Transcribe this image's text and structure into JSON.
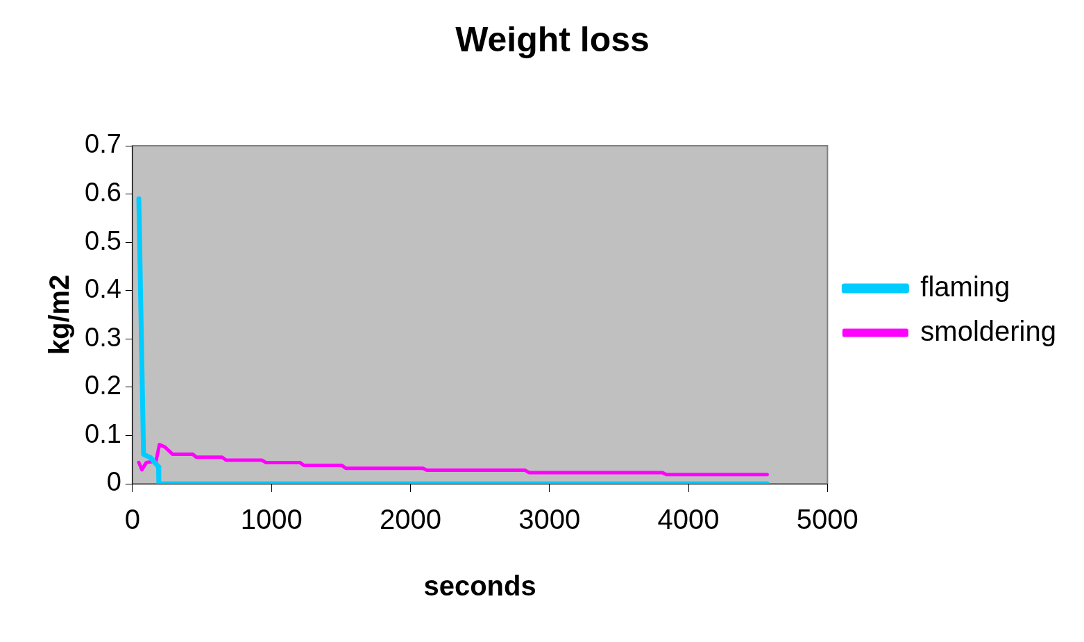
{
  "chart_data": {
    "type": "line",
    "title": "Weight loss",
    "xlabel": "seconds",
    "ylabel": "kg/m2",
    "xlim": [
      0,
      5000
    ],
    "xticks": [
      0,
      1000,
      2000,
      3000,
      4000,
      5000
    ],
    "ylim": [
      0,
      0.7
    ],
    "yticks": [
      0,
      0.1,
      0.2,
      0.3,
      0.4,
      0.5,
      0.6,
      0.7
    ],
    "grid": false,
    "legend": "right",
    "marker": "none",
    "line_style": "solid",
    "series": [
      {
        "name": "flaming",
        "color": "#00ccff",
        "x": [
          46,
          80,
          130,
          188,
          190,
          4566
        ],
        "values": [
          0.59,
          0.061,
          0.054,
          0.035,
          0,
          0
        ]
      },
      {
        "name": "smoldering",
        "color": "#ff00ff",
        "x": [
          46,
          68,
          100,
          170,
          194,
          234,
          290,
          434,
          460,
          645,
          674,
          930,
          960,
          1205,
          1233,
          1507,
          1535,
          2090,
          2118,
          2825,
          2853,
          3813,
          3841,
          4566
        ],
        "values": [
          0.044,
          0.029,
          0.044,
          0.047,
          0.081,
          0.076,
          0.061,
          0.061,
          0.055,
          0.055,
          0.049,
          0.049,
          0.044,
          0.044,
          0.038,
          0.038,
          0.032,
          0.032,
          0.028,
          0.028,
          0.023,
          0.023,
          0.019,
          0.019
        ]
      }
    ]
  }
}
